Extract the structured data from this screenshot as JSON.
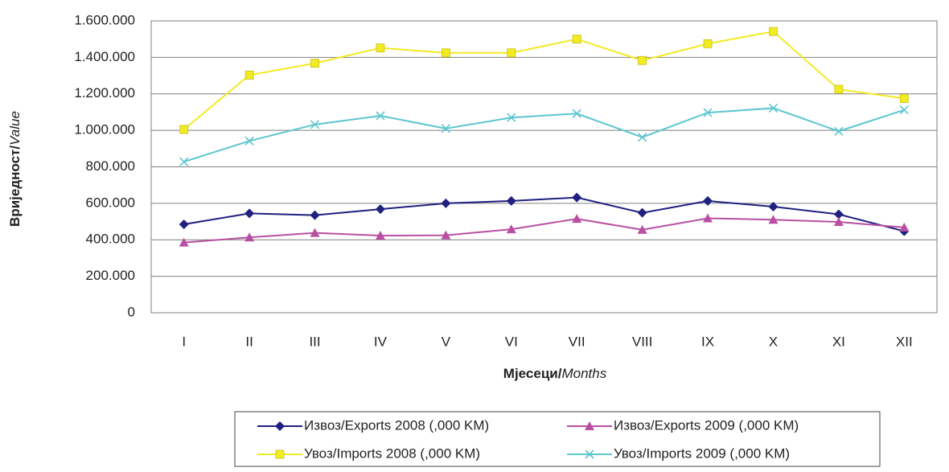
{
  "chart_data": {
    "type": "line",
    "xlabel": {
      "bold": "Мјесеци/",
      "italic": "Months"
    },
    "ylabel": {
      "bold": "Вриједност/",
      "italic": "Value"
    },
    "categories": [
      "I",
      "II",
      "III",
      "IV",
      "V",
      "VI",
      "VII",
      "VIII",
      "IX",
      "X",
      "XI",
      "XII"
    ],
    "series": [
      {
        "name": "Извоз/Exports 2008 (,000 KM)",
        "color": "#1f2080",
        "marker": "diamond",
        "values": [
          485000,
          545000,
          535000,
          568000,
          600000,
          613000,
          632000,
          548000,
          613000,
          582000,
          540000,
          447000
        ]
      },
      {
        "name": "Извоз/Exports 2009 (,000 KM)",
        "color": "#b94fa3",
        "marker": "triangle",
        "values": [
          385000,
          413000,
          438000,
          423000,
          425000,
          458000,
          515000,
          455000,
          518000,
          510000,
          498000,
          468000
        ]
      },
      {
        "name": "Увоз/Imports 2008 (,000 KM)",
        "color": "#f2ea22",
        "marker": "square",
        "values": [
          1005000,
          1303000,
          1368000,
          1452000,
          1425000,
          1425000,
          1500000,
          1383000,
          1475000,
          1542000,
          1225000,
          1175000
        ]
      },
      {
        "name": "Увоз/Imports 2009 (,000 KM)",
        "color": "#5bc6cf",
        "marker": "x",
        "values": [
          828000,
          942000,
          1032000,
          1080000,
          1010000,
          1070000,
          1092000,
          962000,
          1097000,
          1122000,
          995000,
          1112000
        ]
      }
    ],
    "ylim": [
      0,
      1600000
    ],
    "yticks": [
      0,
      {
        "value": 200000,
        "label": "200.000"
      },
      {
        "value": 400000,
        "label": "400.000"
      },
      {
        "value": 600000,
        "label": "600.000"
      },
      {
        "value": 800000,
        "label": "800.000"
      },
      {
        "value": 1000000,
        "label": "1.000.000"
      },
      {
        "value": 1200000,
        "label": "1.200.000"
      },
      {
        "value": 1400000,
        "label": "1.400.000"
      },
      {
        "value": 1600000,
        "label": "1.600.000"
      }
    ],
    "grid": true,
    "legend": "bottom"
  }
}
